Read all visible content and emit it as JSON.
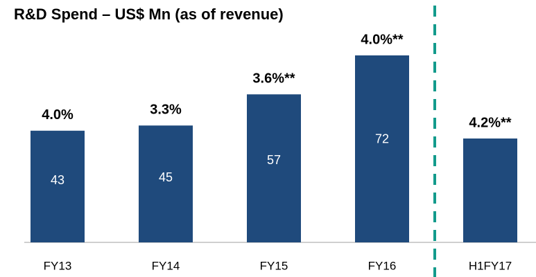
{
  "chart_data": {
    "type": "bar",
    "title": "R&D Spend – US$ Mn (as of revenue)",
    "categories": [
      "FY13",
      "FY14",
      "FY15",
      "FY16",
      "H1FY17"
    ],
    "values": [
      43,
      45,
      57,
      72,
      40
    ],
    "value_labels": [
      "43",
      "45",
      "57",
      "72",
      null
    ],
    "annotations": [
      "4.0%",
      "3.3%",
      "3.6%**",
      "4.0%**",
      "4.2%**"
    ],
    "color": "#1f4a7c",
    "ylim": [
      0,
      80
    ]
  }
}
